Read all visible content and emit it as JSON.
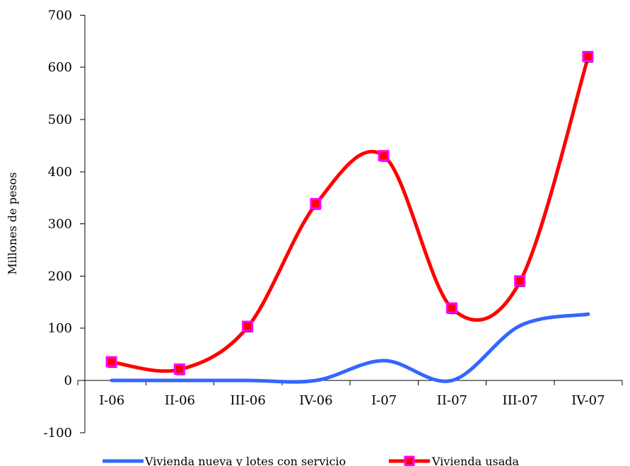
{
  "chart_data": {
    "type": "line",
    "title": "",
    "xlabel": "",
    "ylabel": "Millones de pesos",
    "categories": [
      "I-06",
      "II-06",
      "III-06",
      "IV-06",
      "I-07",
      "II-07",
      "III-07",
      "IV-07"
    ],
    "ylim": [
      -100,
      700
    ],
    "yticks": [
      -100,
      0,
      100,
      200,
      300,
      400,
      500,
      600,
      700
    ],
    "grid": false,
    "legend_position": "bottom",
    "series": [
      {
        "name": "Vivienda nueva y lotes con servicio",
        "color": "#3366ff",
        "marker": "none",
        "values": [
          0,
          0,
          0,
          0,
          38,
          0,
          105,
          127
        ]
      },
      {
        "name": "Vivienda usada",
        "color": "#ff0000",
        "marker": "square",
        "marker_fill": "#ff0000",
        "marker_edge": "#ff00ff",
        "values": [
          35,
          21,
          103,
          338,
          430,
          138,
          190,
          620
        ]
      }
    ]
  }
}
